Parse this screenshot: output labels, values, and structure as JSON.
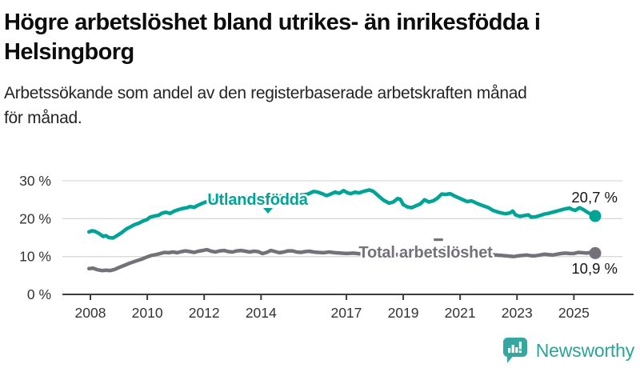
{
  "header": {
    "title_lines": [
      "Högre arbetslöshet bland utrikes- än inrikesfödda i",
      "Helsingborg"
    ],
    "subtitle_lines": [
      "Arbetssökande som andel av den registerbaserade arbetskraften månad",
      "för månad."
    ]
  },
  "footer": {
    "brand": "Newsworthy"
  },
  "colors": {
    "teal": "#00a496",
    "gray": "#75717a",
    "grid": "#d9d9d9",
    "axis": "#3d3d3d",
    "tick_text": "#333333",
    "value_text": "#161616",
    "logo_teal": "#35a79e"
  },
  "chart_data": {
    "type": "line",
    "title": "Högre arbetslöshet bland utrikes- än inrikesfödda i Helsingborg",
    "subtitle": "Arbetssökande som andel av den registerbaserade arbetskraften månad för månad.",
    "unit": "%",
    "x_axis": {
      "ticks": [
        2008,
        2010,
        2012,
        2014,
        2017,
        2019,
        2021,
        2023,
        2025
      ],
      "tick_labels": [
        "2008",
        "2010",
        "2012",
        "2014",
        "2017",
        "2019",
        "2021",
        "2023",
        "2025"
      ],
      "range": [
        2007.9,
        2025.8
      ]
    },
    "y_axis": {
      "ticks": [
        0,
        10,
        20,
        30
      ],
      "tick_labels": [
        "0 %",
        "10 %",
        "20 %",
        "30 %"
      ],
      "range": [
        0,
        30
      ],
      "grid": true
    },
    "series": [
      {
        "name": "Utlandsfödda",
        "color": "#00a496",
        "end_value": 20.7,
        "end_label": "20,7 %",
        "points": [
          [
            2007.95,
            16.5
          ],
          [
            2008.05,
            16.8
          ],
          [
            2008.15,
            16.7
          ],
          [
            2008.3,
            16.1
          ],
          [
            2008.45,
            15.3
          ],
          [
            2008.55,
            15.5
          ],
          [
            2008.65,
            15.0
          ],
          [
            2008.8,
            14.9
          ],
          [
            2008.95,
            15.6
          ],
          [
            2009.1,
            16.3
          ],
          [
            2009.25,
            17.2
          ],
          [
            2009.4,
            17.8
          ],
          [
            2009.55,
            18.4
          ],
          [
            2009.7,
            18.8
          ],
          [
            2009.85,
            19.4
          ],
          [
            2010.0,
            19.8
          ],
          [
            2010.1,
            20.4
          ],
          [
            2010.25,
            20.7
          ],
          [
            2010.4,
            20.9
          ],
          [
            2010.5,
            21.4
          ],
          [
            2010.65,
            21.7
          ],
          [
            2010.8,
            21.4
          ],
          [
            2010.95,
            22.0
          ],
          [
            2011.1,
            22.4
          ],
          [
            2011.25,
            22.7
          ],
          [
            2011.4,
            22.9
          ],
          [
            2011.5,
            23.2
          ],
          [
            2011.65,
            23.0
          ],
          [
            2011.8,
            23.6
          ],
          [
            2011.95,
            24.1
          ],
          [
            2012.1,
            24.5
          ],
          [
            2012.3,
            24.8
          ],
          [
            2012.5,
            25.0
          ],
          [
            2012.7,
            25.1
          ],
          [
            2012.9,
            25.3
          ],
          [
            2013.1,
            25.2
          ],
          [
            2013.3,
            25.5
          ],
          [
            2013.5,
            25.7
          ],
          [
            2013.7,
            25.5
          ],
          [
            2013.9,
            25.4
          ],
          [
            2014.1,
            25.6
          ],
          [
            2014.3,
            25.9
          ],
          [
            2014.5,
            25.8
          ],
          [
            2014.7,
            26.0
          ],
          [
            2014.9,
            26.1
          ],
          [
            2015.1,
            26.0
          ],
          [
            2015.3,
            26.2
          ],
          [
            2015.5,
            26.3
          ],
          [
            2015.65,
            26.5
          ],
          [
            2015.85,
            27.2
          ],
          [
            2016.0,
            27.0
          ],
          [
            2016.15,
            26.6
          ],
          [
            2016.3,
            26.1
          ],
          [
            2016.45,
            26.5
          ],
          [
            2016.6,
            27.0
          ],
          [
            2016.75,
            26.7
          ],
          [
            2016.9,
            27.4
          ],
          [
            2017.05,
            26.8
          ],
          [
            2017.15,
            26.6
          ],
          [
            2017.3,
            27.0
          ],
          [
            2017.45,
            26.8
          ],
          [
            2017.6,
            27.2
          ],
          [
            2017.8,
            27.6
          ],
          [
            2017.95,
            27.2
          ],
          [
            2018.1,
            26.2
          ],
          [
            2018.3,
            24.9
          ],
          [
            2018.5,
            24.1
          ],
          [
            2018.65,
            24.4
          ],
          [
            2018.8,
            25.3
          ],
          [
            2018.9,
            25.1
          ],
          [
            2019.0,
            23.7
          ],
          [
            2019.15,
            23.1
          ],
          [
            2019.3,
            22.9
          ],
          [
            2019.45,
            23.4
          ],
          [
            2019.6,
            23.9
          ],
          [
            2019.75,
            25.0
          ],
          [
            2019.9,
            24.4
          ],
          [
            2020.05,
            24.7
          ],
          [
            2020.2,
            25.4
          ],
          [
            2020.35,
            26.5
          ],
          [
            2020.5,
            26.4
          ],
          [
            2020.65,
            26.6
          ],
          [
            2020.8,
            26.0
          ],
          [
            2020.95,
            25.5
          ],
          [
            2021.1,
            25.0
          ],
          [
            2021.25,
            24.5
          ],
          [
            2021.4,
            24.7
          ],
          [
            2021.55,
            24.2
          ],
          [
            2021.7,
            23.7
          ],
          [
            2021.85,
            23.3
          ],
          [
            2022.0,
            22.9
          ],
          [
            2022.15,
            22.2
          ],
          [
            2022.3,
            21.8
          ],
          [
            2022.45,
            21.5
          ],
          [
            2022.6,
            21.3
          ],
          [
            2022.75,
            21.5
          ],
          [
            2022.85,
            22.0
          ],
          [
            2022.95,
            21.0
          ],
          [
            2023.1,
            20.6
          ],
          [
            2023.25,
            20.8
          ],
          [
            2023.4,
            21.0
          ],
          [
            2023.5,
            20.4
          ],
          [
            2023.65,
            20.5
          ],
          [
            2023.8,
            20.8
          ],
          [
            2023.95,
            21.2
          ],
          [
            2024.1,
            21.4
          ],
          [
            2024.25,
            21.7
          ],
          [
            2024.4,
            22.0
          ],
          [
            2024.55,
            22.3
          ],
          [
            2024.7,
            22.6
          ],
          [
            2024.85,
            22.8
          ],
          [
            2024.95,
            22.4
          ],
          [
            2025.05,
            22.2
          ],
          [
            2025.2,
            22.9
          ],
          [
            2025.35,
            22.3
          ],
          [
            2025.5,
            21.6
          ],
          [
            2025.6,
            21.2
          ],
          [
            2025.75,
            20.7
          ]
        ]
      },
      {
        "name": "Total arbetslöshet",
        "color": "#75717a",
        "end_value": 10.9,
        "end_label": "10,9 %",
        "points": [
          [
            2007.95,
            6.8
          ],
          [
            2008.1,
            6.9
          ],
          [
            2008.25,
            6.5
          ],
          [
            2008.4,
            6.3
          ],
          [
            2008.55,
            6.4
          ],
          [
            2008.7,
            6.3
          ],
          [
            2008.85,
            6.6
          ],
          [
            2009.0,
            7.1
          ],
          [
            2009.2,
            7.7
          ],
          [
            2009.4,
            8.3
          ],
          [
            2009.6,
            8.8
          ],
          [
            2009.8,
            9.3
          ],
          [
            2010.0,
            9.9
          ],
          [
            2010.15,
            10.3
          ],
          [
            2010.3,
            10.5
          ],
          [
            2010.45,
            10.8
          ],
          [
            2010.6,
            11.1
          ],
          [
            2010.75,
            11.0
          ],
          [
            2010.9,
            11.2
          ],
          [
            2011.05,
            11.0
          ],
          [
            2011.2,
            11.3
          ],
          [
            2011.35,
            11.5
          ],
          [
            2011.5,
            11.3
          ],
          [
            2011.65,
            11.1
          ],
          [
            2011.8,
            11.4
          ],
          [
            2011.95,
            11.6
          ],
          [
            2012.1,
            11.8
          ],
          [
            2012.25,
            11.4
          ],
          [
            2012.4,
            11.2
          ],
          [
            2012.55,
            11.5
          ],
          [
            2012.7,
            11.6
          ],
          [
            2012.85,
            11.3
          ],
          [
            2013.0,
            11.2
          ],
          [
            2013.15,
            11.5
          ],
          [
            2013.3,
            11.6
          ],
          [
            2013.45,
            11.4
          ],
          [
            2013.6,
            11.2
          ],
          [
            2013.75,
            11.4
          ],
          [
            2013.9,
            11.3
          ],
          [
            2014.05,
            10.8
          ],
          [
            2014.2,
            11.1
          ],
          [
            2014.35,
            11.6
          ],
          [
            2014.5,
            11.3
          ],
          [
            2014.65,
            11.0
          ],
          [
            2014.8,
            11.2
          ],
          [
            2014.95,
            11.5
          ],
          [
            2015.1,
            11.5
          ],
          [
            2015.25,
            11.2
          ],
          [
            2015.4,
            11.1
          ],
          [
            2015.55,
            11.3
          ],
          [
            2015.7,
            11.4
          ],
          [
            2015.85,
            11.2
          ],
          [
            2016.0,
            11.1
          ],
          [
            2016.2,
            11.0
          ],
          [
            2016.4,
            11.2
          ],
          [
            2016.6,
            11.0
          ],
          [
            2016.8,
            10.9
          ],
          [
            2017.0,
            10.8
          ],
          [
            2017.25,
            10.9
          ],
          [
            2017.5,
            10.7
          ],
          [
            2017.75,
            10.6
          ],
          [
            2018.0,
            10.7
          ],
          [
            2018.25,
            10.5
          ],
          [
            2018.5,
            10.4
          ],
          [
            2018.75,
            10.5
          ],
          [
            2019.0,
            10.4
          ],
          [
            2019.25,
            10.3
          ],
          [
            2019.5,
            10.5
          ],
          [
            2019.75,
            10.6
          ],
          [
            2020.0,
            10.7
          ],
          [
            2020.25,
            11.5
          ],
          [
            2020.45,
            12.2
          ],
          [
            2020.6,
            12.1
          ],
          [
            2020.8,
            11.9
          ],
          [
            2021.0,
            11.7
          ],
          [
            2021.25,
            11.4
          ],
          [
            2021.5,
            11.1
          ],
          [
            2021.75,
            10.8
          ],
          [
            2022.0,
            10.6
          ],
          [
            2022.25,
            10.4
          ],
          [
            2022.45,
            10.3
          ],
          [
            2022.6,
            10.2
          ],
          [
            2022.75,
            10.1
          ],
          [
            2022.9,
            10.0
          ],
          [
            2023.05,
            10.2
          ],
          [
            2023.2,
            10.3
          ],
          [
            2023.35,
            10.4
          ],
          [
            2023.5,
            10.2
          ],
          [
            2023.65,
            10.2
          ],
          [
            2023.8,
            10.4
          ],
          [
            2023.95,
            10.6
          ],
          [
            2024.1,
            10.5
          ],
          [
            2024.25,
            10.4
          ],
          [
            2024.4,
            10.6
          ],
          [
            2024.55,
            10.8
          ],
          [
            2024.7,
            10.9
          ],
          [
            2024.85,
            10.8
          ],
          [
            2025.0,
            10.8
          ],
          [
            2025.15,
            11.1
          ],
          [
            2025.3,
            11.0
          ],
          [
            2025.45,
            10.9
          ],
          [
            2025.6,
            11.1
          ],
          [
            2025.75,
            10.9
          ]
        ]
      }
    ],
    "legend_position": "inline-labels"
  }
}
